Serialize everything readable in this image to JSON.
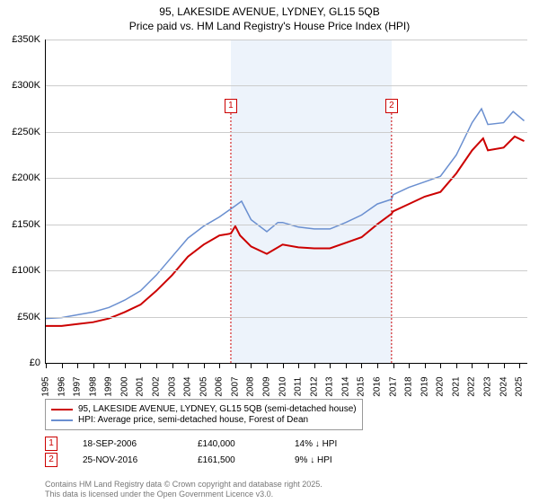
{
  "title_line1": "95, LAKESIDE AVENUE, LYDNEY, GL15 5QB",
  "title_line2": "Price paid vs. HM Land Registry's House Price Index (HPI)",
  "chart": {
    "type": "line",
    "background_color": "#ffffff",
    "grid_color": "#cccccc",
    "shade_color": "#e6eef9",
    "colors": {
      "series1": "#cc0000",
      "series2": "#6a8fd0"
    },
    "line_widths": {
      "series1": 2,
      "series2": 1.5
    },
    "x_years": [
      1995,
      1996,
      1997,
      1998,
      1999,
      2000,
      2001,
      2002,
      2003,
      2004,
      2005,
      2006,
      2007,
      2008,
      2009,
      2010,
      2011,
      2012,
      2013,
      2014,
      2015,
      2016,
      2017,
      2018,
      2019,
      2020,
      2021,
      2022,
      2023,
      2024,
      2025
    ],
    "xlim": [
      1995,
      2025.5
    ],
    "ylim": [
      0,
      350000
    ],
    "ytick_step": 50000,
    "yticks_labels": [
      "£0",
      "£50K",
      "£100K",
      "£150K",
      "£200K",
      "£250K",
      "£300K",
      "£350K"
    ],
    "shade_from": 2006.72,
    "shade_to": 2016.9,
    "series1": [
      [
        1995,
        40000
      ],
      [
        1996,
        40000
      ],
      [
        1997,
        42000
      ],
      [
        1998,
        44000
      ],
      [
        1999,
        48000
      ],
      [
        2000,
        55000
      ],
      [
        2001,
        63000
      ],
      [
        2002,
        78000
      ],
      [
        2003,
        95000
      ],
      [
        2004,
        115000
      ],
      [
        2005,
        128000
      ],
      [
        2006,
        138000
      ],
      [
        2006.72,
        140000
      ],
      [
        2007,
        148000
      ],
      [
        2007.3,
        138000
      ],
      [
        2008,
        126000
      ],
      [
        2009,
        118000
      ],
      [
        2010,
        128000
      ],
      [
        2011,
        125000
      ],
      [
        2012,
        124000
      ],
      [
        2013,
        124000
      ],
      [
        2014,
        130000
      ],
      [
        2015,
        136000
      ],
      [
        2016,
        150000
      ],
      [
        2016.9,
        161500
      ],
      [
        2017,
        164000
      ],
      [
        2018,
        172000
      ],
      [
        2019,
        180000
      ],
      [
        2020,
        185000
      ],
      [
        2021,
        205000
      ],
      [
        2022,
        230000
      ],
      [
        2022.7,
        243000
      ],
      [
        2023,
        230000
      ],
      [
        2024,
        233000
      ],
      [
        2024.7,
        245000
      ],
      [
        2025.3,
        240000
      ]
    ],
    "series2": [
      [
        1995,
        48000
      ],
      [
        1996,
        49000
      ],
      [
        1997,
        52000
      ],
      [
        1998,
        55000
      ],
      [
        1999,
        60000
      ],
      [
        2000,
        68000
      ],
      [
        2001,
        78000
      ],
      [
        2002,
        95000
      ],
      [
        2003,
        115000
      ],
      [
        2004,
        135000
      ],
      [
        2005,
        148000
      ],
      [
        2006,
        158000
      ],
      [
        2007,
        170000
      ],
      [
        2007.4,
        175000
      ],
      [
        2008,
        155000
      ],
      [
        2009,
        142000
      ],
      [
        2009.7,
        152000
      ],
      [
        2010,
        152000
      ],
      [
        2011,
        147000
      ],
      [
        2012,
        145000
      ],
      [
        2013,
        145000
      ],
      [
        2014,
        152000
      ],
      [
        2015,
        160000
      ],
      [
        2016,
        172000
      ],
      [
        2016.9,
        177000
      ],
      [
        2017,
        182000
      ],
      [
        2018,
        190000
      ],
      [
        2019,
        196000
      ],
      [
        2020,
        202000
      ],
      [
        2021,
        225000
      ],
      [
        2022,
        260000
      ],
      [
        2022.6,
        275000
      ],
      [
        2023,
        258000
      ],
      [
        2024,
        260000
      ],
      [
        2024.6,
        272000
      ],
      [
        2025.3,
        262000
      ]
    ],
    "markers": [
      {
        "n": "1",
        "x": 2006.72,
        "y": 278000,
        "color": "#cc0000"
      },
      {
        "n": "2",
        "x": 2016.9,
        "y": 278000,
        "color": "#cc0000"
      }
    ]
  },
  "legend": [
    {
      "color": "#cc0000",
      "label": "95, LAKESIDE AVENUE, LYDNEY, GL15 5QB (semi-detached house)"
    },
    {
      "color": "#6a8fd0",
      "label": "HPI: Average price, semi-detached house, Forest of Dean"
    }
  ],
  "sales": [
    {
      "n": "1",
      "color": "#cc0000",
      "date": "18-SEP-2006",
      "price": "£140,000",
      "delta": "14% ↓ HPI"
    },
    {
      "n": "2",
      "color": "#cc0000",
      "date": "25-NOV-2016",
      "price": "£161,500",
      "delta": "9% ↓ HPI"
    }
  ],
  "footer_line1": "Contains HM Land Registry data © Crown copyright and database right 2025.",
  "footer_line2": "This data is licensed under the Open Government Licence v3.0."
}
